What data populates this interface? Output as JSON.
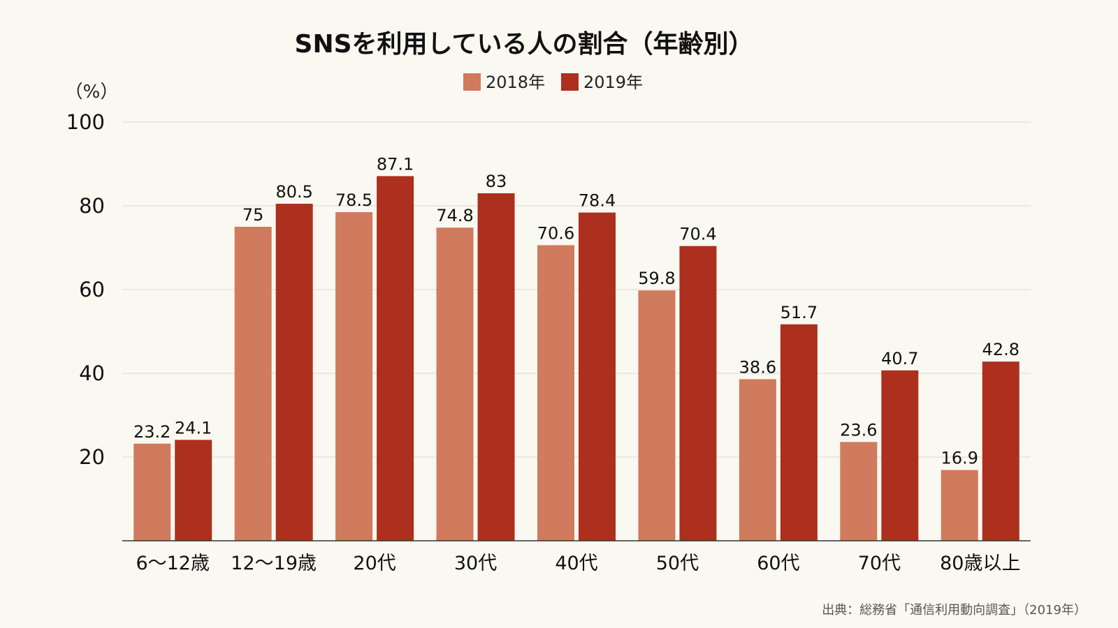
{
  "chart_data": {
    "type": "bar",
    "title": "SNSを利用している人の割合（年齢別）",
    "ylabel": "（%）",
    "categories": [
      "6〜12歳",
      "12〜19歳",
      "20代",
      "30代",
      "40代",
      "50代",
      "60代",
      "70代",
      "80歳以上"
    ],
    "series": [
      {
        "name": "2018年",
        "color": "#d07a5e",
        "values": [
          23.2,
          75,
          78.5,
          74.8,
          70.6,
          59.8,
          38.6,
          23.6,
          16.9
        ]
      },
      {
        "name": "2019年",
        "color": "#ad2f1d",
        "values": [
          24.1,
          80.5,
          87.1,
          83,
          78.4,
          70.4,
          51.7,
          40.7,
          42.8
        ]
      }
    ],
    "ylim": [
      0,
      100
    ],
    "yticks": [
      20,
      40,
      60,
      80,
      100
    ],
    "grid": true,
    "legend": "top-center",
    "source": "出典：総務省「通信利用動向調査」（2019年）"
  }
}
